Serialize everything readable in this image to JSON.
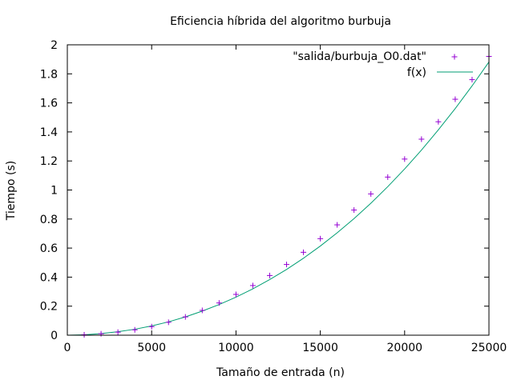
{
  "chart_data": {
    "type": "scatter",
    "title": "Eficiencia híbrida del algoritmo burbuja",
    "xlabel": "Tamaño de entrada (n)",
    "ylabel": "Tiempo (s)",
    "xlim": [
      0,
      25000
    ],
    "ylim": [
      0,
      2
    ],
    "xticks": [
      0,
      5000,
      10000,
      15000,
      20000,
      25000
    ],
    "yticks": [
      0,
      0.2,
      0.4,
      0.6,
      0.8,
      1,
      1.2,
      1.4,
      1.6,
      1.8,
      2
    ],
    "xtick_labels": [
      "0",
      "5000",
      "10000",
      "15000",
      "20000",
      "25000"
    ],
    "ytick_labels": [
      "0",
      "0.2",
      "0.4",
      "0.6",
      "0.8",
      "1",
      "1.2",
      "1.4",
      "1.6",
      "1.8",
      "2"
    ],
    "grid": false,
    "legend_position": "top-right",
    "series": [
      {
        "name": "\"salida/burbuja_O0.dat\"",
        "kind": "points",
        "marker": "plus",
        "color": "#9400d3",
        "x": [
          1000,
          2000,
          3000,
          4000,
          5000,
          6000,
          7000,
          8000,
          9000,
          10000,
          11000,
          12000,
          13000,
          14000,
          15000,
          16000,
          17000,
          18000,
          19000,
          20000,
          21000,
          22000,
          23000,
          24000,
          25000
        ],
        "y": [
          0.003,
          0.01,
          0.021,
          0.037,
          0.059,
          0.089,
          0.126,
          0.171,
          0.222,
          0.281,
          0.342,
          0.411,
          0.487,
          0.571,
          0.665,
          0.76,
          0.862,
          0.973,
          1.089,
          1.213,
          1.35,
          1.47,
          1.625,
          1.76,
          1.92
        ]
      },
      {
        "name": "f(x)",
        "kind": "line",
        "color": "#009e73",
        "x": [
          0,
          1000,
          2000,
          3000,
          4000,
          5000,
          6000,
          7000,
          8000,
          9000,
          10000,
          11000,
          12000,
          13000,
          14000,
          15000,
          16000,
          17000,
          18000,
          19000,
          20000,
          21000,
          22000,
          23000,
          24000,
          25000
        ],
        "y": [
          0.0,
          0.003,
          0.011,
          0.024,
          0.041,
          0.064,
          0.092,
          0.126,
          0.166,
          0.211,
          0.262,
          0.319,
          0.383,
          0.453,
          0.53,
          0.614,
          0.705,
          0.803,
          0.909,
          1.023,
          1.145,
          1.275,
          1.414,
          1.561,
          1.717,
          1.882
        ]
      }
    ]
  }
}
